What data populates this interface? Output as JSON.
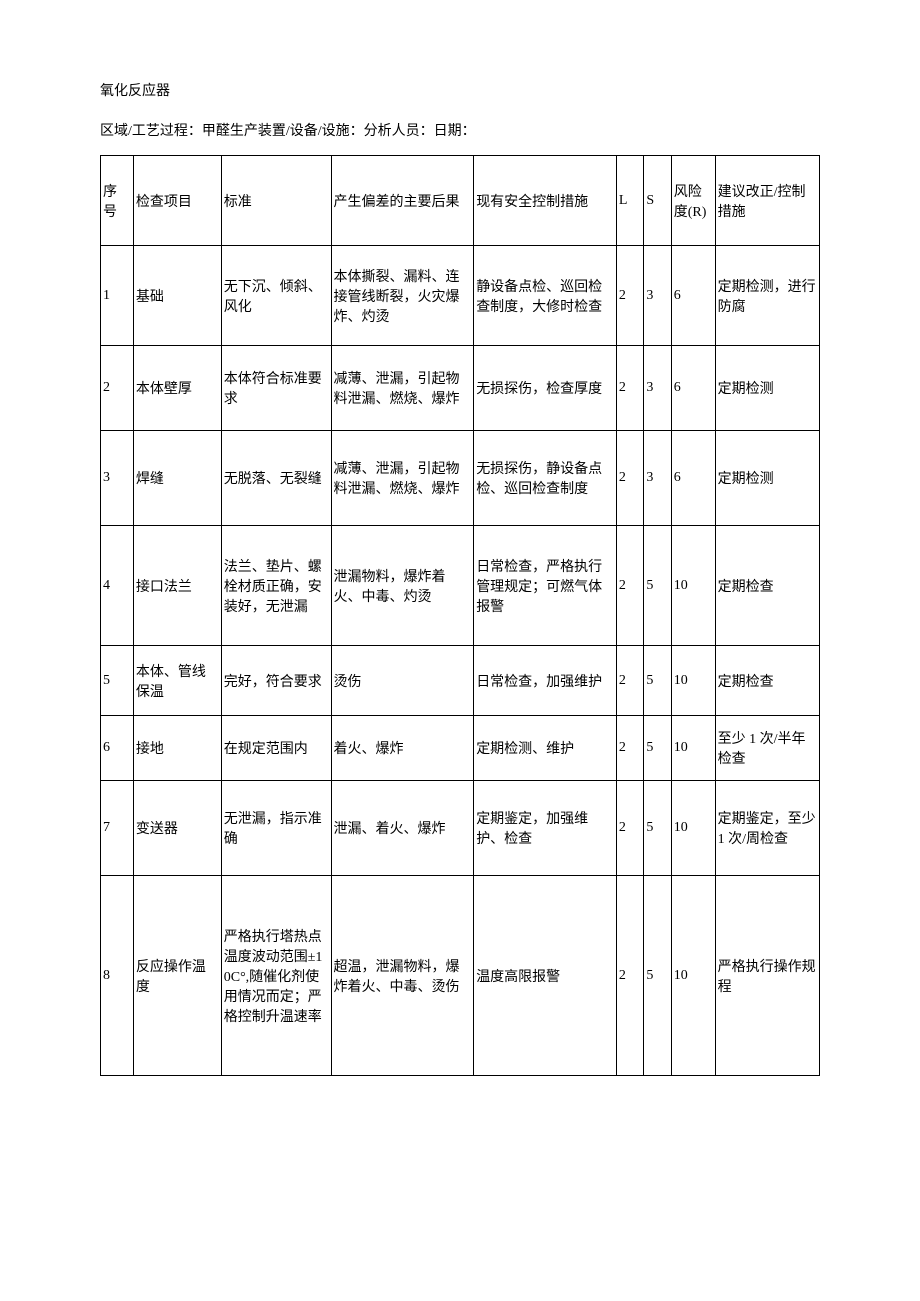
{
  "title": "氧化反应器",
  "subtitle": "区域/工艺过程：甲醛生产装置/设备/设施：分析人员：日期：",
  "headers": {
    "seq": "序号",
    "item": "检查项目",
    "standard": "标准",
    "deviation": "产生偏差的主要后果",
    "control": "现有安全控制措施",
    "l": "L",
    "s": "S",
    "r": "风险度(R)",
    "recommend": "建议改正/控制措施"
  },
  "rows": [
    {
      "seq": "1",
      "item": "基础",
      "standard": "无下沉、倾斜、风化",
      "deviation": "本体撕裂、漏料、连接管线断裂，火灾爆炸、灼烫",
      "control": "静设备点检、巡回检查制度，大修时检查",
      "l": "2",
      "s": "3",
      "r": "6",
      "recommend": "定期检测，进行防腐"
    },
    {
      "seq": "2",
      "item": "本体壁厚",
      "standard": "本体符合标准要求",
      "deviation": "减薄、泄漏，引起物料泄漏、燃烧、爆炸",
      "control": "无损探伤，检查厚度",
      "l": "2",
      "s": "3",
      "r": "6",
      "recommend": "定期检测"
    },
    {
      "seq": "3",
      "item": "焊缝",
      "standard": "无脱落、无裂缝",
      "deviation": "减薄、泄漏，引起物料泄漏、燃烧、爆炸",
      "control": "无损探伤，静设备点检、巡回检查制度",
      "l": "2",
      "s": "3",
      "r": "6",
      "recommend": "定期检测"
    },
    {
      "seq": "4",
      "item": "接口法兰",
      "standard": "法兰、垫片、螺栓材质正确，安装好，无泄漏",
      "deviation": "泄漏物料，爆炸着火、中毒、灼烫",
      "control": "日常检查，严格执行管理规定；可燃气体报警",
      "l": "2",
      "s": "5",
      "r": "10",
      "recommend": "定期检查"
    },
    {
      "seq": "5",
      "item": "本体、管线保温",
      "standard": "完好，符合要求",
      "deviation": "烫伤",
      "control": "日常检查，加强维护",
      "l": "2",
      "s": "5",
      "r": "10",
      "recommend": "定期检查"
    },
    {
      "seq": "6",
      "item": "接地",
      "standard": "在规定范围内",
      "deviation": "着火、爆炸",
      "control": "定期检测、维护",
      "l": "2",
      "s": "5",
      "r": "10",
      "recommend": "至少 1 次/半年检查"
    },
    {
      "seq": "7",
      "item": "变送器",
      "standard": "无泄漏，指示准确",
      "deviation": "泄漏、着火、爆炸",
      "control": "定期鉴定，加强维护、检查",
      "l": "2",
      "s": "5",
      "r": "10",
      "recommend": "定期鉴定，至少\n1 次/周检查"
    },
    {
      "seq": "8",
      "item": "反应操作温度",
      "standard": "严格执行塔热点温度波动范围±10C°,随催化剂使用情况而定；严格控制升温速率",
      "deviation": "超温，泄漏物料，爆炸着火、中毒、烫伤",
      "control": "温度高限报警",
      "l": "2",
      "s": "5",
      "r": "10",
      "recommend": "严格执行操作规程"
    }
  ]
}
